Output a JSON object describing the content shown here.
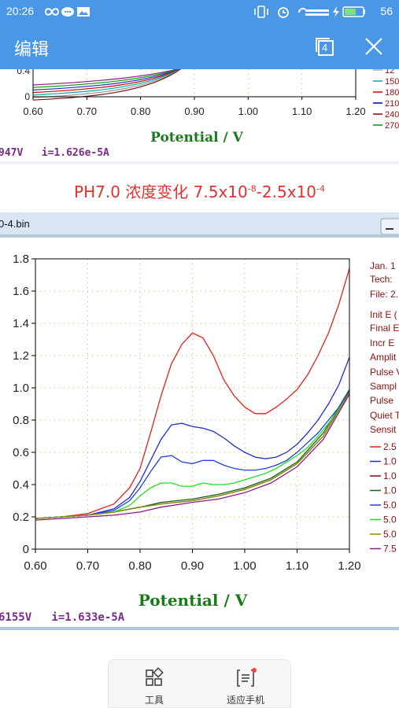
{
  "status_bar": {
    "time": "20:26",
    "battery": "56",
    "left_icons": [
      "infinity-icon",
      "chat-icon",
      "image-icon"
    ],
    "right_icons": [
      "vibrate-icon",
      "alarm-icon",
      "signal-icon",
      "charging-icon",
      "battery-icon"
    ]
  },
  "app_bar": {
    "title": "编辑",
    "page_count": "4",
    "bg_color": "#4a97e8"
  },
  "top_plot": {
    "y_ticks": [
      "0.4",
      "0"
    ],
    "x_ticks": [
      "0.60",
      "0.70",
      "0.80",
      "0.90",
      "1.00",
      "1.10",
      "1.20"
    ],
    "xlabel": "Potential / V",
    "legend": [
      "12",
      "150",
      "180",
      "210",
      "240",
      "270"
    ],
    "legend_colors": [
      "#aaaaaa",
      "#00aaaa",
      "#cc0000",
      "#0000cc",
      "#990000",
      "#009900"
    ],
    "status_text": "947V   i=1.626e-5A"
  },
  "caption": {
    "prefix": "PH7.0 浓度变化 7.5x10",
    "exp1": "-8",
    "mid": "-2.5x10",
    "exp2": "-4"
  },
  "main_window": {
    "title": "0-4.bin",
    "status_text": "6155V   i=1.633e-5A",
    "info_lines": [
      "Jan. 1",
      "Tech:",
      "File: 2.",
      "Init E (",
      "Final E",
      "Incr E",
      "Amplit",
      "Pulse V",
      "Sampl",
      "Pulse",
      "Quiet T",
      "Sensit"
    ],
    "legend": [
      "2.5",
      "1.0",
      "1.0",
      "1.0",
      "5.0",
      "5.0",
      "5.0",
      "7.5"
    ]
  },
  "chart_data": {
    "type": "line",
    "title": "",
    "xlabel": "Potential / V",
    "ylabel": "",
    "xlim": [
      0.6,
      1.2
    ],
    "ylim": [
      0,
      1.8
    ],
    "x_ticks": [
      "0.60",
      "0.70",
      "0.80",
      "0.90",
      "1.00",
      "1.10",
      "1.20"
    ],
    "y_ticks": [
      "0",
      "0.2",
      "0.4",
      "0.6",
      "0.8",
      "1.0",
      "1.2",
      "1.4",
      "1.6",
      "1.8"
    ],
    "grid": true,
    "legend_position": "right",
    "series": [
      {
        "name": "2.5",
        "color": "#e02020",
        "x": [
          0.6,
          0.65,
          0.7,
          0.75,
          0.78,
          0.8,
          0.82,
          0.84,
          0.86,
          0.88,
          0.9,
          0.92,
          0.94,
          0.96,
          0.98,
          1.0,
          1.02,
          1.04,
          1.06,
          1.08,
          1.1,
          1.12,
          1.14,
          1.16,
          1.18,
          1.2
        ],
        "y": [
          0.19,
          0.2,
          0.22,
          0.28,
          0.38,
          0.5,
          0.72,
          0.95,
          1.15,
          1.27,
          1.34,
          1.31,
          1.2,
          1.05,
          0.95,
          0.88,
          0.84,
          0.84,
          0.88,
          0.93,
          0.99,
          1.08,
          1.2,
          1.34,
          1.52,
          1.74
        ]
      },
      {
        "name": "1.0",
        "color": "#2030d0",
        "x": [
          0.6,
          0.65,
          0.7,
          0.75,
          0.78,
          0.8,
          0.82,
          0.84,
          0.86,
          0.88,
          0.9,
          0.92,
          0.94,
          0.96,
          0.98,
          1.0,
          1.02,
          1.04,
          1.06,
          1.08,
          1.1,
          1.12,
          1.14,
          1.16,
          1.18,
          1.2
        ],
        "y": [
          0.19,
          0.2,
          0.21,
          0.25,
          0.32,
          0.42,
          0.55,
          0.68,
          0.77,
          0.78,
          0.76,
          0.75,
          0.73,
          0.69,
          0.64,
          0.6,
          0.57,
          0.56,
          0.57,
          0.6,
          0.65,
          0.72,
          0.8,
          0.9,
          1.02,
          1.19
        ]
      },
      {
        "name": "1.0",
        "color": "#7a1010",
        "x": [
          0.6,
          0.65,
          0.7,
          0.75,
          0.8,
          0.84,
          0.9,
          0.95,
          1.0,
          1.05,
          1.1,
          1.15,
          1.2
        ],
        "y": [
          0.19,
          0.2,
          0.21,
          0.23,
          0.26,
          0.28,
          0.3,
          0.33,
          0.37,
          0.43,
          0.53,
          0.7,
          0.98
        ]
      },
      {
        "name": "1.0",
        "color": "#10601a",
        "x": [
          0.6,
          0.65,
          0.7,
          0.75,
          0.8,
          0.84,
          0.9,
          0.95,
          1.0,
          1.05,
          1.1,
          1.15,
          1.2
        ],
        "y": [
          0.19,
          0.2,
          0.21,
          0.23,
          0.26,
          0.29,
          0.31,
          0.34,
          0.38,
          0.44,
          0.54,
          0.72,
          0.99
        ]
      },
      {
        "name": "5.0",
        "color": "#2040e0",
        "x": [
          0.6,
          0.65,
          0.7,
          0.75,
          0.78,
          0.8,
          0.82,
          0.84,
          0.86,
          0.88,
          0.9,
          0.92,
          0.94,
          0.96,
          0.98,
          1.0,
          1.02,
          1.04,
          1.06,
          1.08,
          1.1,
          1.12,
          1.14,
          1.16,
          1.18,
          1.2
        ],
        "y": [
          0.19,
          0.2,
          0.21,
          0.24,
          0.3,
          0.38,
          0.48,
          0.57,
          0.58,
          0.54,
          0.53,
          0.55,
          0.55,
          0.52,
          0.5,
          0.49,
          0.49,
          0.5,
          0.52,
          0.55,
          0.6,
          0.66,
          0.72,
          0.8,
          0.88,
          0.98
        ]
      },
      {
        "name": "5.0",
        "color": "#20e020",
        "x": [
          0.6,
          0.65,
          0.7,
          0.75,
          0.78,
          0.8,
          0.82,
          0.84,
          0.86,
          0.88,
          0.9,
          0.92,
          0.94,
          0.96,
          0.98,
          1.0,
          1.02,
          1.04,
          1.06,
          1.08,
          1.1,
          1.12,
          1.14,
          1.16,
          1.18,
          1.2
        ],
        "y": [
          0.19,
          0.2,
          0.21,
          0.23,
          0.27,
          0.33,
          0.38,
          0.41,
          0.41,
          0.39,
          0.39,
          0.41,
          0.4,
          0.4,
          0.41,
          0.43,
          0.45,
          0.47,
          0.5,
          0.54,
          0.58,
          0.63,
          0.7,
          0.78,
          0.87,
          0.97
        ]
      },
      {
        "name": "5.0",
        "color": "#8a8a00",
        "x": [
          0.6,
          0.65,
          0.7,
          0.75,
          0.8,
          0.84,
          0.9,
          0.95,
          1.0,
          1.05,
          1.1,
          1.15,
          1.2
        ],
        "y": [
          0.19,
          0.2,
          0.21,
          0.23,
          0.26,
          0.28,
          0.3,
          0.33,
          0.37,
          0.43,
          0.53,
          0.7,
          0.97
        ]
      },
      {
        "name": "7.5",
        "color": "#8a1a8a",
        "x": [
          0.6,
          0.65,
          0.7,
          0.75,
          0.8,
          0.84,
          0.9,
          0.95,
          1.0,
          1.05,
          1.1,
          1.15,
          1.2
        ],
        "y": [
          0.18,
          0.19,
          0.2,
          0.21,
          0.23,
          0.26,
          0.29,
          0.31,
          0.35,
          0.41,
          0.51,
          0.68,
          0.96
        ]
      }
    ]
  },
  "toolbar": {
    "tools_label": "工具",
    "fit_label": "适应手机",
    "notify_color": "#e84c3d"
  }
}
